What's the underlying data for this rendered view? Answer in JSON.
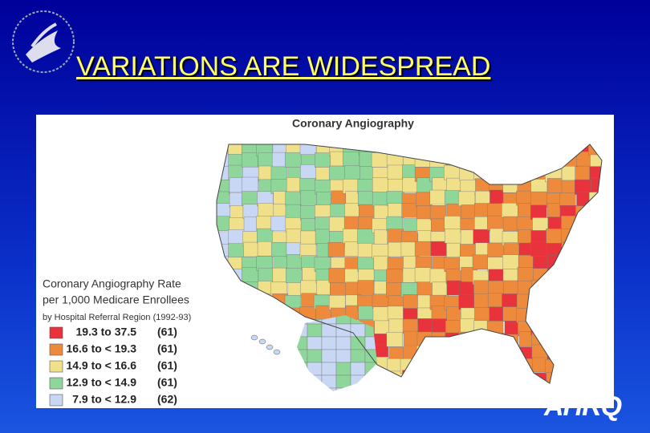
{
  "slide": {
    "title": "VARIATIONS ARE WIDESPREAD"
  },
  "map": {
    "title": "Coronary Angiography",
    "legend": {
      "title_line1": "Coronary Angiography Rate",
      "title_line2": "per 1,000 Medicare Enrollees",
      "subtitle": "by Hospital Referral Region (1992-93)",
      "items": [
        {
          "range": "19.3 to    37.5",
          "count": "(61)",
          "color": "#e8323c"
        },
        {
          "range": "16.6 to < 19.3",
          "count": "(61)",
          "color": "#ee8a3c"
        },
        {
          "range": "14.9 to < 16.6",
          "count": "(61)",
          "color": "#f0e08a"
        },
        {
          "range": "12.9 to < 14.9",
          "count": "(61)",
          "color": "#8fd69a"
        },
        {
          "range": "7.9 to < 12.9",
          "count": "(62)",
          "color": "#c8d8f4"
        }
      ]
    }
  },
  "footer": {
    "logo": "AHRQ"
  }
}
